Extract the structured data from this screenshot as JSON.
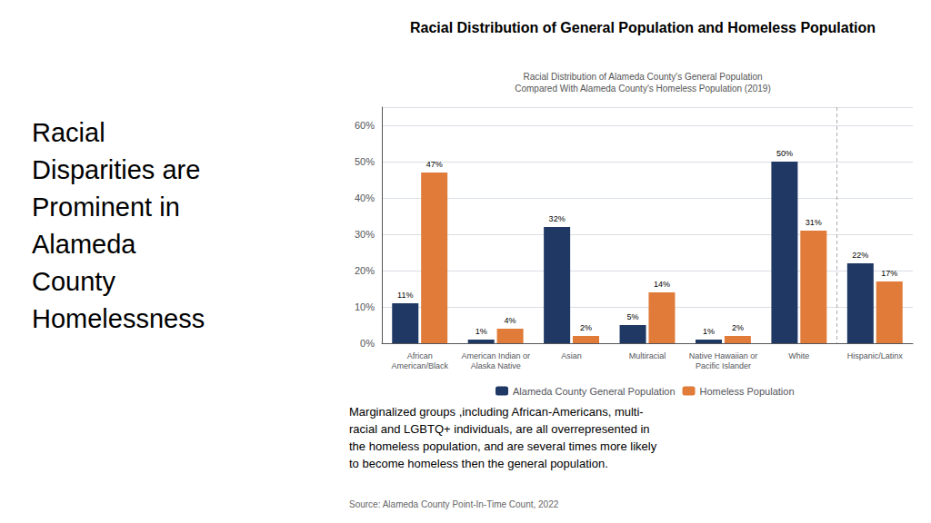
{
  "chart_data": {
    "type": "bar",
    "title": "Racial Distribution of General Population and Homeless Population",
    "subtitle": "Racial Distribution of Alameda County's General Population\nCompared With Alameda County's Homeless Population (2019)",
    "categories": [
      "African\nAmerican/Black",
      "American Indian or\nAlaska Native",
      "Asian",
      "Multiracial",
      "Native Hawaiian or\nPacific Islander",
      "White",
      "Hispanic/Latinx"
    ],
    "series": [
      {
        "name": "Alameda County General Population",
        "color": "#1F3864",
        "values": [
          11,
          1,
          32,
          5,
          1,
          50,
          22
        ],
        "value_labels": [
          "11%",
          "1%",
          "32%",
          "5%",
          "1%",
          "50%",
          "22%"
        ]
      },
      {
        "name": "Homeless Population",
        "color": "#E07B39",
        "values": [
          47,
          4,
          2,
          14,
          2,
          31,
          17
        ],
        "value_labels": [
          "47%",
          "4%",
          "2%",
          "14%",
          "2%",
          "31%",
          "17%"
        ]
      }
    ],
    "ylim": [
      0,
      65
    ],
    "yticks": [
      {
        "value": 0,
        "label": "0%"
      },
      {
        "value": 10,
        "label": "10%"
      },
      {
        "value": 20,
        "label": "20%"
      },
      {
        "value": 30,
        "label": "30%"
      },
      {
        "value": 40,
        "label": "40%"
      },
      {
        "value": 50,
        "label": "50%"
      },
      {
        "value": 60,
        "label": "60%"
      }
    ],
    "grid": true,
    "legend": "bottom",
    "data_labels": true,
    "annotations": [
      "Racial\nDisparities are\nProminent in\nAlameda\nCounty\nHomelessness",
      "Marginalized groups ,including African-Americans, multi-\nracial and LGBTQ+ individuals, are all overrepresented in\nthe homeless population, and are several times more likely\nto become homeless then the general population.",
      "Source: Alameda County Point-In-Time Count, 2022"
    ]
  }
}
